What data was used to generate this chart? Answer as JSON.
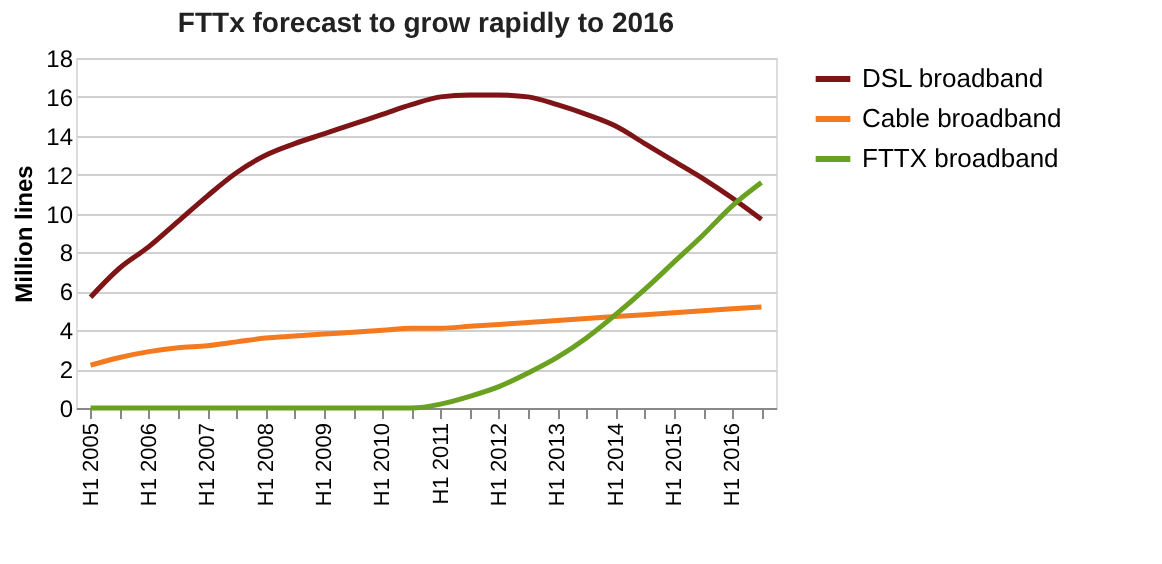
{
  "chart_data": {
    "type": "line",
    "title": "FTTx forecast to grow rapidly to 2016",
    "ylabel": "Million lines",
    "categories": [
      "H1 2005",
      null,
      "H1 2006",
      null,
      "H1 2007",
      null,
      "H1 2008",
      null,
      "H1 2009",
      null,
      "H1 2010",
      null,
      "H1 2011",
      null,
      "H1 2012",
      null,
      "H1 2013",
      null,
      "H1 2014",
      null,
      "H1 2015",
      null,
      "H1 2016",
      null
    ],
    "series": [
      {
        "name": "DSL broadband",
        "color": "#7f1416",
        "values": [
          5.7,
          7.2,
          8.3,
          9.6,
          10.9,
          12.1,
          13.0,
          13.6,
          14.1,
          14.6,
          15.1,
          15.6,
          16.0,
          16.1,
          16.1,
          16.0,
          15.6,
          15.1,
          14.5,
          13.6,
          12.7,
          11.8,
          10.8,
          9.7
        ]
      },
      {
        "name": "Cable broadband",
        "color": "#f47a20",
        "values": [
          2.2,
          2.6,
          2.9,
          3.1,
          3.2,
          3.4,
          3.6,
          3.7,
          3.8,
          3.9,
          4.0,
          4.1,
          4.1,
          4.2,
          4.3,
          4.4,
          4.5,
          4.6,
          4.7,
          4.8,
          4.9,
          5.0,
          5.1,
          5.2
        ]
      },
      {
        "name": "FTTX broadband",
        "color": "#6aa121",
        "values": [
          0,
          0,
          0,
          0,
          0,
          0,
          0,
          0,
          0,
          0,
          0,
          0,
          0.2,
          0.6,
          1.1,
          1.8,
          2.6,
          3.6,
          4.8,
          6.1,
          7.5,
          8.9,
          10.4,
          11.6
        ]
      }
    ],
    "ylim": [
      0,
      18
    ],
    "yticks": [
      0,
      2,
      4,
      6,
      8,
      10,
      12,
      14,
      16,
      18
    ],
    "grid": "y",
    "legend": "right",
    "marker": "none",
    "line_style": "solid"
  }
}
